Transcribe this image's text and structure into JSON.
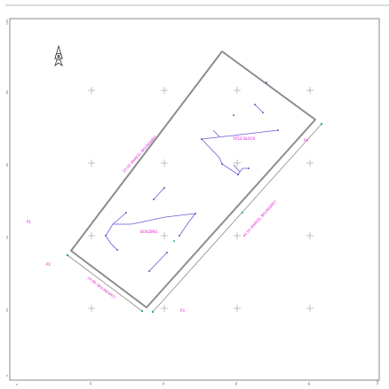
{
  "north_arrow": {
    "letter": "B"
  },
  "x_ticks": [
    "0",
    "20",
    "40",
    "60",
    "80",
    "100"
  ],
  "y_ticks": [
    "0",
    "20",
    "40",
    "60",
    "80",
    "100"
  ],
  "boundary_labels": {
    "side_a": "52.00 (PARCEL BOUNDARY)",
    "side_b": "44.50 (PARCEL BOUNDARY)",
    "side_c": "14.80 (BOUNDARY)"
  },
  "feature_labels": {
    "upper": "TITLE BLOCK",
    "lower": "BUILDING"
  },
  "outside_labels": {
    "left": "P1",
    "bottom_left": "P2",
    "bottom": "P3",
    "right_top": "P4"
  },
  "colors": {
    "boundary": "#8d8d8d",
    "annotation": "#e020d0",
    "feature": "#6a5ad8",
    "marker": "#2aa8a0"
  }
}
